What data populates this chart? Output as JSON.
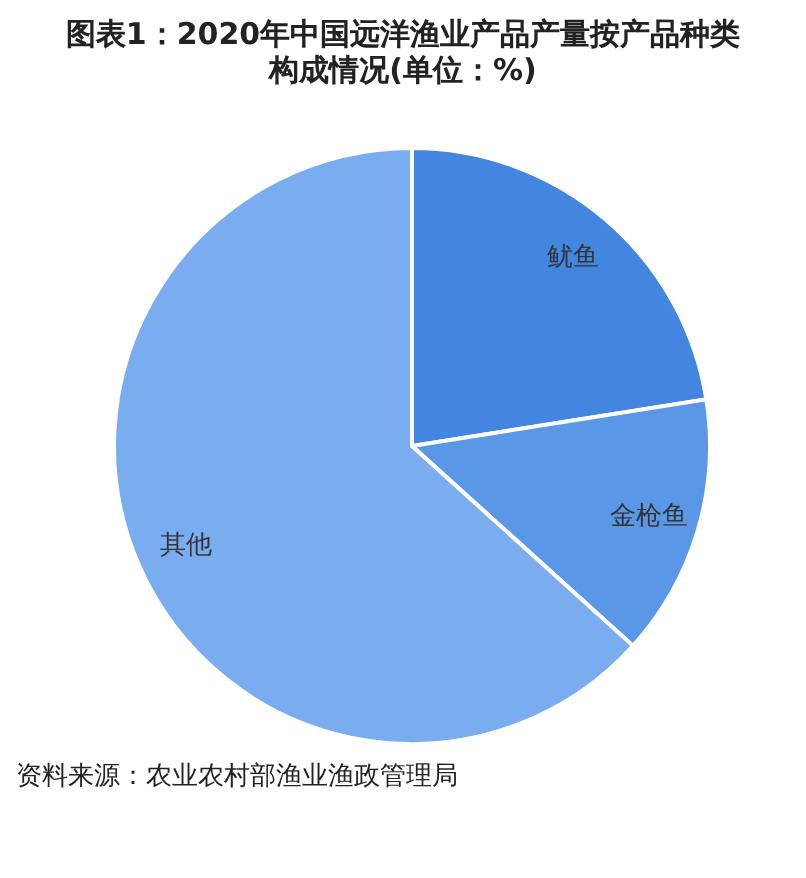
{
  "chart_data": {
    "type": "pie",
    "title": "图表1：2020年中国远洋渔业产品产量按产品种类构成情况(单位：%)",
    "categories": [
      "鱿鱼",
      "金枪鱼",
      "其他"
    ],
    "values": [
      22.5,
      14.2,
      63.3
    ],
    "colors": [
      "#4286e0",
      "#5b97e7",
      "#7aadf0"
    ],
    "annotations": [
      "资料来源：农业农村部渔业渔政管理局"
    ]
  }
}
